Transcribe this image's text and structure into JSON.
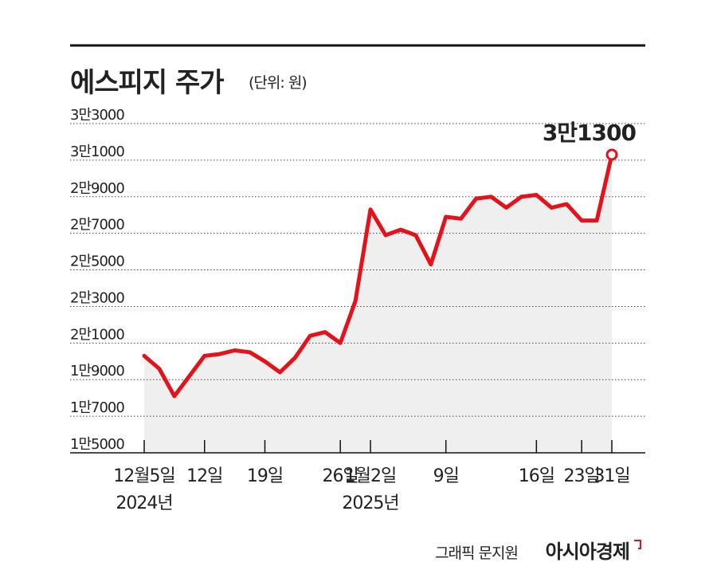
{
  "chart_data": {
    "type": "line",
    "title": "에스피지 주가",
    "subtitle": "(단위: 원)",
    "categories": [
      "12월5일",
      null,
      null,
      null,
      "12일",
      null,
      null,
      null,
      "19일",
      null,
      null,
      null,
      null,
      "26일",
      null,
      "1월2일",
      null,
      null,
      null,
      null,
      "9일",
      null,
      null,
      null,
      null,
      null,
      "16일",
      null,
      null,
      "23일",
      null,
      "31일"
    ],
    "category_years": [
      "2024년",
      null,
      null,
      null,
      null,
      null,
      null,
      null,
      null,
      null,
      null,
      null,
      null,
      null,
      null,
      "2025년",
      null,
      null,
      null,
      null,
      null,
      null,
      null,
      null,
      null,
      null,
      null,
      null,
      null,
      null,
      null,
      null
    ],
    "values": [
      20300,
      19600,
      18100,
      19200,
      20300,
      20400,
      20600,
      20500,
      20000,
      19400,
      20200,
      21400,
      21600,
      21000,
      23300,
      28300,
      26900,
      27200,
      26900,
      25300,
      27900,
      27800,
      28900,
      29000,
      28400,
      29000,
      29100,
      28400,
      28600,
      27700,
      27700,
      31300
    ],
    "value_labels": [
      null,
      null,
      null,
      null,
      null,
      null,
      null,
      null,
      null,
      null,
      null,
      null,
      null,
      null,
      null,
      null,
      null,
      null,
      null,
      null,
      null,
      null,
      null,
      null,
      null,
      null,
      null,
      null,
      null,
      null,
      null,
      "3만1300"
    ],
    "color": "#e3121b",
    "area_color": "#efefef",
    "ylim": [
      15000,
      33000
    ],
    "yticks": [
      {
        "value": 15000,
        "label": "1만5000"
      },
      {
        "value": 17000,
        "label": "1만7000"
      },
      {
        "value": 19000,
        "label": "1만9000"
      },
      {
        "value": 21000,
        "label": "2만1000"
      },
      {
        "value": 23000,
        "label": "2만3000"
      },
      {
        "value": 25000,
        "label": "2만5000"
      },
      {
        "value": 27000,
        "label": "2만7000"
      },
      {
        "value": 29000,
        "label": "2만9000"
      },
      {
        "value": 31000,
        "label": "3만1000"
      },
      {
        "value": 33000,
        "label": "3만3000"
      }
    ],
    "grid": true,
    "credit": "그래픽 문지원",
    "source": "아시아경제"
  }
}
